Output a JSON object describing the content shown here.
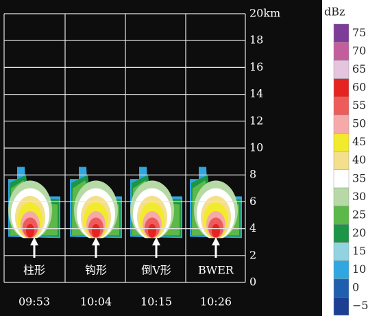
{
  "height_axis": {
    "ticks": [
      {
        "value": 20,
        "label": "20km"
      },
      18,
      16,
      14,
      12,
      10,
      8,
      6,
      4,
      2,
      0
    ]
  },
  "panels": [
    {
      "label": "柱形",
      "time": "09:53"
    },
    {
      "label": "钩形",
      "time": "10:04"
    },
    {
      "label": "倒V形",
      "time": "10:15"
    },
    {
      "label": "BWER",
      "time": "10:26"
    }
  ],
  "colorbar": {
    "title": "dBz",
    "levels": [
      {
        "value": 75,
        "color": "#7d3c98"
      },
      {
        "value": 70,
        "color": "#c35e9c"
      },
      {
        "value": 65,
        "color": "#e4c4df"
      },
      {
        "value": 60,
        "color": "#e52421"
      },
      {
        "value": 55,
        "color": "#ee5b5b"
      },
      {
        "value": 50,
        "color": "#f5aaa9"
      },
      {
        "value": 45,
        "color": "#f2ea2c"
      },
      {
        "value": 40,
        "color": "#f3df8c"
      },
      {
        "value": 35,
        "color": "#ffffff"
      },
      {
        "value": 30,
        "color": "#b6d9a6"
      },
      {
        "value": 25,
        "color": "#5cb848"
      },
      {
        "value": 20,
        "color": "#1b9546"
      },
      {
        "value": 15,
        "color": "#91d3e1"
      },
      {
        "value": 10,
        "color": "#30a7e0"
      },
      {
        "value": 0,
        "color": "#1f5fb0"
      },
      {
        "value": -5,
        "label": "−5",
        "color": "#1c3f94"
      }
    ]
  }
}
